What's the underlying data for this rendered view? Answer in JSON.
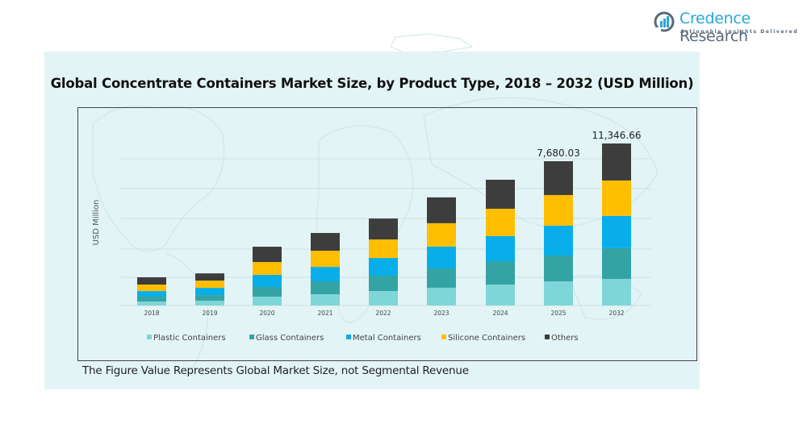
{
  "brand": {
    "name_part1": "Credence",
    "name_part2": " Research",
    "tagline": "Actionable Insights Delivered"
  },
  "footnote": "The Figure Value Represents Global Market Size, not Segmental Revenue",
  "colors": {
    "panel_bg": "#e3f4f6",
    "plastic": "#7fd6d8",
    "glass": "#33a3a4",
    "metal": "#07aeea",
    "silicone": "#ffbf00",
    "others": "#3d3d3d",
    "brand_blue": "#2aa7d6"
  },
  "chart_data": {
    "type": "bar",
    "stacked": true,
    "title": "Global Concentrate  Containers Market Size, by Product Type, 2018 – 2032 (USD Million)",
    "xlabel": "",
    "ylabel": "USD Million",
    "ylim": [
      0,
      12000
    ],
    "grid": true,
    "legend_position": "bottom",
    "categories": [
      "2018",
      "2019",
      "2020",
      "2021",
      "2022",
      "2023",
      "2024",
      "2025",
      "2032"
    ],
    "series": [
      {
        "name": "Plastic Containers",
        "color": "#7fd6d8",
        "values": [
          215,
          255,
          470,
          600,
          770,
          945,
          1115,
          1285,
          1865
        ]
      },
      {
        "name": "Glass Containers",
        "color": "#33a3a4",
        "values": [
          255,
          300,
          515,
          685,
          815,
          1030,
          1245,
          1375,
          2150
        ]
      },
      {
        "name": "Metal Containers",
        "color": "#07aeea",
        "values": [
          300,
          385,
          645,
          770,
          945,
          1160,
          1330,
          1590,
          2260
        ]
      },
      {
        "name": "Silicone Containers",
        "color": "#ffbf00",
        "values": [
          345,
          385,
          685,
          860,
          985,
          1245,
          1460,
          1630,
          2480
        ]
      },
      {
        "name": "Others",
        "color": "#3d3d3d",
        "values": [
          385,
          385,
          815,
          945,
          1115,
          1375,
          1545,
          1800.03,
          2591.66
        ]
      }
    ],
    "annotations": [
      {
        "category": "2025",
        "text": "7,680.03"
      },
      {
        "category": "2032",
        "text": "11,346.66"
      }
    ]
  }
}
